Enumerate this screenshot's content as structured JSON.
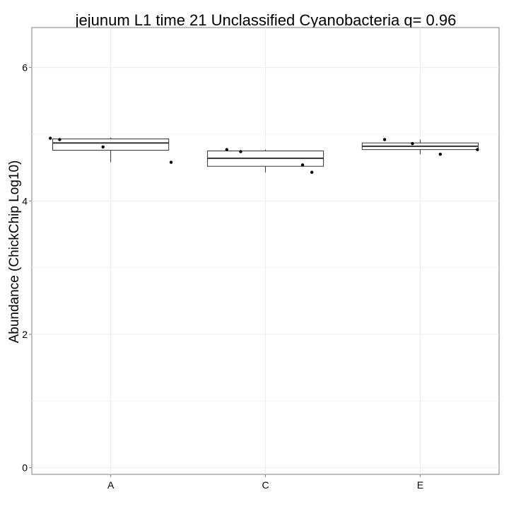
{
  "chart_data": {
    "type": "box",
    "title": "jejunum L1 time 21 Unclassified Cyanobacteria q= 0.96",
    "xlabel": "",
    "ylabel": "Abundance (ChickChip Log10)",
    "categories": [
      "A",
      "C",
      "E"
    ],
    "ylim": [
      -0.1,
      6.6
    ],
    "yticks": [
      "0",
      "2",
      "4",
      "6"
    ],
    "grid": true,
    "boxes": [
      {
        "category": "A",
        "whisker_low": 4.58,
        "q1": 4.76,
        "median": 4.87,
        "q3": 4.93,
        "whisker_high": 4.95
      },
      {
        "category": "C",
        "whisker_low": 4.43,
        "q1": 4.52,
        "median": 4.64,
        "q3": 4.75,
        "whisker_high": 4.77
      },
      {
        "category": "E",
        "whisker_low": 4.7,
        "q1": 4.77,
        "median": 4.82,
        "q3": 4.87,
        "whisker_high": 4.92
      }
    ],
    "points": [
      {
        "category": "A",
        "jitter": -0.39,
        "value": 4.94
      },
      {
        "category": "A",
        "jitter": -0.33,
        "value": 4.92
      },
      {
        "category": "A",
        "jitter": -0.05,
        "value": 4.81
      },
      {
        "category": "A",
        "jitter": 0.39,
        "value": 4.58
      },
      {
        "category": "C",
        "jitter": -0.25,
        "value": 4.77
      },
      {
        "category": "C",
        "jitter": -0.16,
        "value": 4.74
      },
      {
        "category": "C",
        "jitter": 0.24,
        "value": 4.54
      },
      {
        "category": "C",
        "jitter": 0.3,
        "value": 4.43
      },
      {
        "category": "E",
        "jitter": -0.23,
        "value": 4.92
      },
      {
        "category": "E",
        "jitter": -0.05,
        "value": 4.86
      },
      {
        "category": "E",
        "jitter": 0.13,
        "value": 4.7
      },
      {
        "category": "E",
        "jitter": 0.37,
        "value": 4.77
      }
    ]
  }
}
